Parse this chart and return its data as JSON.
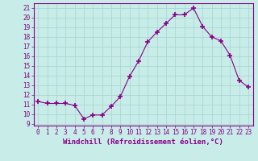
{
  "x": [
    0,
    1,
    2,
    3,
    4,
    5,
    6,
    7,
    8,
    9,
    10,
    11,
    12,
    13,
    14,
    15,
    16,
    17,
    18,
    19,
    20,
    21,
    22,
    23
  ],
  "y": [
    11.3,
    11.1,
    11.1,
    11.1,
    10.9,
    9.5,
    9.9,
    9.9,
    10.8,
    11.8,
    13.9,
    15.5,
    17.5,
    18.5,
    19.4,
    20.3,
    20.3,
    21.0,
    19.1,
    18.0,
    17.6,
    16.1,
    13.5,
    12.8
  ],
  "ylim": [
    8.8,
    21.5
  ],
  "xlim": [
    -0.5,
    23.5
  ],
  "yticks": [
    9,
    10,
    11,
    12,
    13,
    14,
    15,
    16,
    17,
    18,
    19,
    20,
    21
  ],
  "xticks": [
    0,
    1,
    2,
    3,
    4,
    5,
    6,
    7,
    8,
    9,
    10,
    11,
    12,
    13,
    14,
    15,
    16,
    17,
    18,
    19,
    20,
    21,
    22,
    23
  ],
  "xlabel": "Windchill (Refroidissement éolien,°C)",
  "line_color": "#880088",
  "marker": "+",
  "marker_size": 4,
  "background_color": "#c8ece8",
  "grid_color": "#aad8d4",
  "tick_label_color": "#880088",
  "xlabel_color": "#880088",
  "tick_fontsize": 5.5,
  "xlabel_fontsize": 6.5
}
